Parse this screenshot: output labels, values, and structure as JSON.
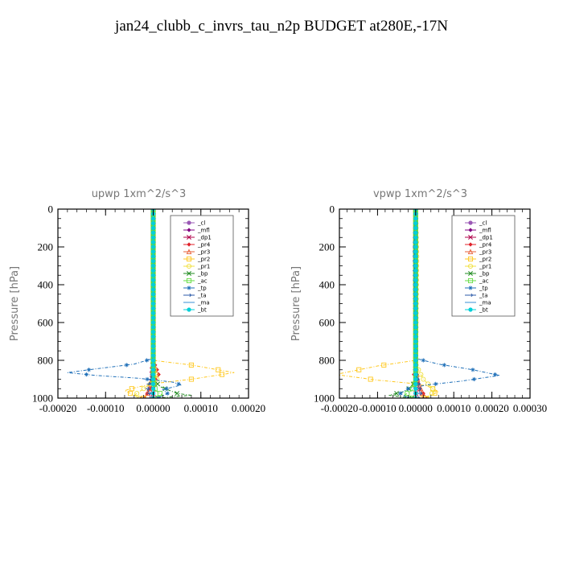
{
  "title": "jan24_clubb_c_invrs_tau_n2p  BUDGET at280E,-17N",
  "chart_data": [
    {
      "type": "line",
      "title": "upwp   1xm^2/s^3",
      "ylabel": "Pressure [hPa]",
      "xlim": [
        -0.0002,
        0.0002
      ],
      "ylim": [
        1000,
        0
      ],
      "xticks": [
        -0.0002,
        -0.0001,
        0,
        0.0001,
        0.0002
      ],
      "xtick_labels": [
        "-0.00020",
        "-0.00010",
        "0.00000",
        "0.00010",
        "0.00020"
      ],
      "yticks": [
        0,
        200,
        400,
        600,
        800,
        1000
      ],
      "ytick_labels": [
        "0",
        "200",
        "400",
        "600",
        "800",
        "1000"
      ],
      "legend_position": "top-right",
      "series": [
        {
          "name": "_cl",
          "color": "#9b59b6",
          "marker": "dot",
          "points": [
            [
              0,
              0
            ],
            [
              0,
              1000
            ]
          ]
        },
        {
          "name": "_mfl",
          "color": "#800080",
          "marker": "diamond",
          "points": [
            [
              0,
              0
            ],
            [
              0,
              1000
            ]
          ]
        },
        {
          "name": "_dp1",
          "color": "#b0004a",
          "marker": "cross",
          "points": [
            [
              0,
              0
            ],
            [
              0,
              800
            ],
            [
              -3e-06,
              860
            ],
            [
              0,
              940
            ],
            [
              0,
              1000
            ]
          ]
        },
        {
          "name": "_pr4",
          "color": "#e0202a",
          "marker": "diamond",
          "points": [
            [
              0,
              0
            ],
            [
              0,
              800
            ],
            [
              8e-06,
              850
            ],
            [
              1.2e-05,
              880
            ],
            [
              5e-06,
              900
            ],
            [
              -5e-06,
              940
            ],
            [
              -1e-05,
              970
            ],
            [
              -2e-05,
              990
            ],
            [
              -2.5e-05,
              1000
            ]
          ]
        },
        {
          "name": "_pr3",
          "color": "#e8603a",
          "marker": "triangle",
          "points": [
            [
              0,
              0
            ],
            [
              0,
              800
            ],
            [
              4e-06,
              860
            ],
            [
              -6e-06,
              920
            ],
            [
              -1e-05,
              970
            ],
            [
              -1.8e-05,
              1000
            ]
          ]
        },
        {
          "name": "_pr2",
          "color": "#ffc820",
          "marker": "square",
          "points": [
            [
              0,
              0
            ],
            [
              0,
              800
            ],
            [
              8e-05,
              825
            ],
            [
              0.00017,
              865
            ],
            [
              8e-05,
              900
            ],
            [
              1.2e-05,
              920
            ],
            [
              -3e-05,
              940
            ],
            [
              -6e-05,
              960
            ],
            [
              -4e-05,
              985
            ],
            [
              -2e-05,
              1000
            ]
          ]
        },
        {
          "name": "_pr1",
          "color": "#f0e040",
          "marker": "circle",
          "points": [
            [
              0,
              0
            ],
            [
              0,
              820
            ],
            [
              8e-06,
              900
            ],
            [
              -2e-05,
              950
            ],
            [
              -4e-05,
              985
            ],
            [
              -3e-05,
              1000
            ]
          ]
        },
        {
          "name": "_bp",
          "color": "#228b22",
          "marker": "cross",
          "points": [
            [
              0,
              0
            ],
            [
              0,
              900
            ],
            [
              1.5e-05,
              940
            ],
            [
              3.5e-05,
              960
            ],
            [
              5e-05,
              975
            ],
            [
              8e-05,
              985
            ],
            [
              3e-05,
              995
            ],
            [
              1e-05,
              1000
            ]
          ]
        },
        {
          "name": "_ac",
          "color": "#66dd44",
          "marker": "square",
          "points": [
            [
              0,
              0
            ],
            [
              0,
              920
            ],
            [
              5e-06,
              960
            ],
            [
              2e-05,
              985
            ],
            [
              1e-05,
              1000
            ]
          ]
        },
        {
          "name": "_tp",
          "color": "#1e6fb8",
          "marker": "star",
          "points": [
            [
              0,
              0
            ],
            [
              0,
              790
            ],
            [
              -4e-05,
              820
            ],
            [
              -0.00012,
              845
            ],
            [
              -0.00018,
              865
            ],
            [
              -0.00012,
              880
            ],
            [
              -3e-05,
              895
            ],
            [
              4e-05,
              915
            ],
            [
              6e-05,
              930
            ],
            [
              2e-05,
              955
            ],
            [
              3e-05,
              975
            ],
            [
              1e-05,
              1000
            ]
          ]
        },
        {
          "name": "_ta",
          "color": "#2b5aa8",
          "marker": "arrow",
          "points": [
            [
              0,
              0
            ],
            [
              0,
              860
            ],
            [
              -6e-06,
              900
            ],
            [
              -1.2e-05,
              950
            ],
            [
              -6e-06,
              1000
            ]
          ]
        },
        {
          "name": "_ma",
          "color": "#3a8fd4",
          "marker": "dash",
          "points": [
            [
              0,
              0
            ],
            [
              0,
              1000
            ]
          ]
        },
        {
          "name": "_bt",
          "color": "#00d0d8",
          "marker": "dot",
          "points": [
            [
              0,
              0
            ],
            [
              0,
              1000
            ]
          ]
        }
      ]
    },
    {
      "type": "line",
      "title": "vpwp   1xm^2/s^3",
      "ylabel": "Pressure [hPa]",
      "xlim": [
        -0.0002,
        0.0003
      ],
      "ylim": [
        1000,
        0
      ],
      "xticks": [
        -0.0002,
        -0.0001,
        0,
        0.0001,
        0.0002,
        0.0003
      ],
      "xtick_labels": [
        "-0.00020",
        "-0.00010",
        "0.00000",
        "0.00010",
        "0.00020",
        "0.00030"
      ],
      "yticks": [
        0,
        200,
        400,
        600,
        800,
        1000
      ],
      "ytick_labels": [
        "0",
        "200",
        "400",
        "600",
        "800",
        "1000"
      ],
      "legend_position": "top-right",
      "series": [
        {
          "name": "_cl",
          "color": "#9b59b6",
          "marker": "dot",
          "points": [
            [
              0,
              0
            ],
            [
              0,
              1000
            ]
          ]
        },
        {
          "name": "_mfl",
          "color": "#800080",
          "marker": "diamond",
          "points": [
            [
              0,
              0
            ],
            [
              0,
              1000
            ]
          ]
        },
        {
          "name": "_dp1",
          "color": "#b0004a",
          "marker": "cross",
          "points": [
            [
              0,
              0
            ],
            [
              0,
              860
            ],
            [
              3e-06,
              920
            ],
            [
              0,
              1000
            ]
          ]
        },
        {
          "name": "_pr4",
          "color": "#e0202a",
          "marker": "diamond",
          "points": [
            [
              0,
              0
            ],
            [
              0,
              830
            ],
            [
              -5e-06,
              880
            ],
            [
              8e-06,
              940
            ],
            [
              2e-05,
              975
            ],
            [
              3e-05,
              1000
            ]
          ]
        },
        {
          "name": "_pr3",
          "color": "#e8603a",
          "marker": "triangle",
          "points": [
            [
              0,
              0
            ],
            [
              0,
              840
            ],
            [
              5e-06,
              900
            ],
            [
              1.5e-05,
              960
            ],
            [
              2e-05,
              1000
            ]
          ]
        },
        {
          "name": "_pr2",
          "color": "#ffc820",
          "marker": "square",
          "points": [
            [
              0,
              0
            ],
            [
              0,
              800
            ],
            [
              -0.0001,
              830
            ],
            [
              -0.00021,
              875
            ],
            [
              -0.0001,
              905
            ],
            [
              -2e-05,
              920
            ],
            [
              3e-05,
              935
            ],
            [
              6e-05,
              965
            ],
            [
              4e-05,
              985
            ],
            [
              2e-05,
              1000
            ]
          ]
        },
        {
          "name": "_pr1",
          "color": "#f0e040",
          "marker": "circle",
          "points": [
            [
              0,
              0
            ],
            [
              3e-06,
              250
            ],
            [
              0,
              820
            ],
            [
              2e-05,
              900
            ],
            [
              5e-05,
              960
            ],
            [
              3e-05,
              1000
            ]
          ]
        },
        {
          "name": "_bp",
          "color": "#228b22",
          "marker": "cross",
          "points": [
            [
              0,
              0
            ],
            [
              0,
              900
            ],
            [
              -1e-05,
              940
            ],
            [
              -3e-05,
              965
            ],
            [
              -7e-05,
              985
            ],
            [
              -3e-05,
              995
            ],
            [
              -1e-05,
              1000
            ]
          ]
        },
        {
          "name": "_ac",
          "color": "#66dd44",
          "marker": "square",
          "points": [
            [
              0,
              0
            ],
            [
              0,
              920
            ],
            [
              -1e-05,
              960
            ],
            [
              -3e-05,
              985
            ],
            [
              -1e-05,
              1000
            ]
          ]
        },
        {
          "name": "_tp",
          "color": "#1e6fb8",
          "marker": "star",
          "points": [
            [
              0,
              0
            ],
            [
              -3e-06,
              220
            ],
            [
              0,
              790
            ],
            [
              6e-05,
              820
            ],
            [
              0.00015,
              850
            ],
            [
              0.00022,
              880
            ],
            [
              0.00012,
              910
            ],
            [
              3e-05,
              930
            ],
            [
              -2e-05,
              950
            ],
            [
              -4e-05,
              975
            ],
            [
              -2e-05,
              1000
            ]
          ]
        },
        {
          "name": "_ta",
          "color": "#2b5aa8",
          "marker": "arrow",
          "points": [
            [
              0,
              0
            ],
            [
              0,
              860
            ],
            [
              6e-06,
              920
            ],
            [
              1.2e-05,
              980
            ],
            [
              6e-06,
              1000
            ]
          ]
        },
        {
          "name": "_ma",
          "color": "#3a8fd4",
          "marker": "dash",
          "points": [
            [
              0,
              0
            ],
            [
              0,
              1000
            ]
          ]
        },
        {
          "name": "_bt",
          "color": "#00d0d8",
          "marker": "dot",
          "points": [
            [
              0,
              0
            ],
            [
              0,
              1000
            ]
          ]
        }
      ]
    }
  ]
}
